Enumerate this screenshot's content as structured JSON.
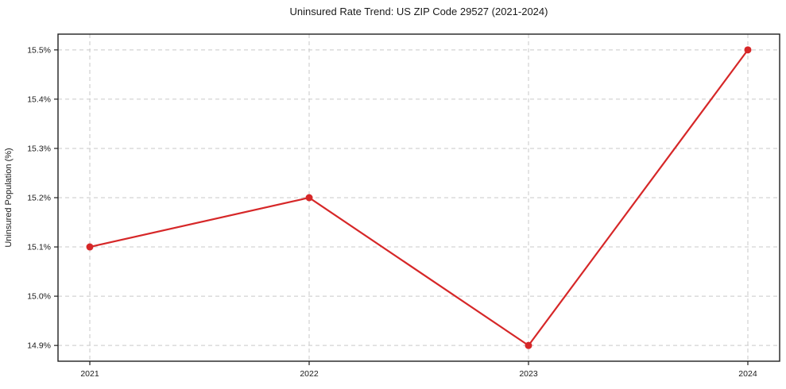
{
  "chart_data": {
    "type": "line",
    "title": "Uninsured Rate Trend: US ZIP Code 29527 (2021-2024)",
    "xlabel": "",
    "ylabel": "Uninsured Population (%)",
    "x": [
      2021,
      2022,
      2023,
      2024
    ],
    "series": [
      {
        "name": "Uninsured Rate",
        "values": [
          15.1,
          15.2,
          14.9,
          15.5
        ]
      }
    ],
    "xtick_labels": [
      "2021",
      "2022",
      "2023",
      "2024"
    ],
    "ytick_values": [
      14.9,
      15.0,
      15.1,
      15.2,
      15.3,
      15.4,
      15.5
    ],
    "ytick_labels": [
      "14.9%",
      "15.0%",
      "15.1%",
      "15.2%",
      "15.3%",
      "15.4%",
      "15.5%"
    ],
    "xlim": [
      2020.855,
      2024.145
    ],
    "ylim": [
      14.868,
      15.532
    ],
    "grid": true,
    "grid_style": "dashed",
    "legend_position": "none",
    "line_color": "#d62728",
    "marker": "circle",
    "grid_color": "#c9c9c9",
    "spine_color": "#1f1f1f",
    "tick_color": "#1a1a1a"
  }
}
